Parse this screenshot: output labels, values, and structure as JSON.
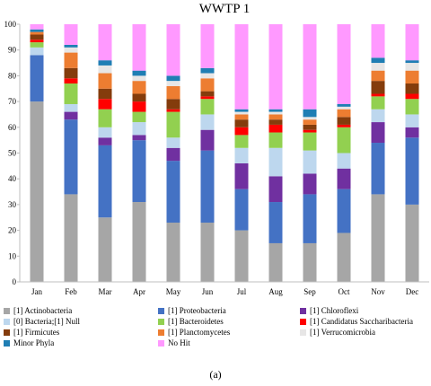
{
  "caption": "(a)",
  "chart_data": {
    "type": "bar",
    "stacked": true,
    "title": "WWTP 1",
    "xlabel": "",
    "ylabel": "",
    "ylim": [
      0,
      100
    ],
    "yticks": [
      0,
      10,
      20,
      30,
      40,
      50,
      60,
      70,
      80,
      90,
      100
    ],
    "grid": false,
    "legend_position": "bottom",
    "categories": [
      "Jan",
      "Feb",
      "Mar",
      "Apr",
      "May",
      "Jun",
      "Jul",
      "Aug",
      "Sep",
      "Oct",
      "Nov",
      "Dec"
    ],
    "series": [
      {
        "name": "[1] Actinobacteria",
        "color": "#a6a6a6",
        "values": [
          70,
          34,
          25,
          31,
          23,
          23,
          20,
          15,
          15,
          19,
          34,
          30
        ]
      },
      {
        "name": "[1] Proteobacteria",
        "color": "#4472c4",
        "values": [
          18,
          29,
          28,
          24,
          24,
          28,
          16,
          16,
          19,
          17,
          20,
          26
        ]
      },
      {
        "name": "[1] Chloroflexi",
        "color": "#7030a0",
        "values": [
          0,
          3,
          3,
          2,
          5,
          8,
          10,
          10,
          8,
          8,
          8,
          4
        ]
      },
      {
        "name": "[0] Bacteria;[1] Null",
        "color": "#bdd7ee",
        "values": [
          3,
          3,
          4,
          5,
          4,
          6,
          6,
          11,
          9,
          6,
          5,
          5
        ]
      },
      {
        "name": "[1] Bacteroidetes",
        "color": "#92d050",
        "values": [
          2,
          8,
          7,
          4,
          10,
          6,
          5,
          6,
          7,
          10,
          5,
          6
        ]
      },
      {
        "name": "[1] Candidatus Saccharibacteria",
        "color": "#ff0000",
        "values": [
          1,
          2,
          4,
          4,
          1,
          1,
          3,
          3,
          1,
          1,
          1,
          2
        ]
      },
      {
        "name": "[1] Firmicutes",
        "color": "#843c0c",
        "values": [
          2,
          4,
          4,
          3,
          4,
          2,
          3,
          2,
          2,
          3,
          5,
          4
        ]
      },
      {
        "name": "[1] Planctomycetes",
        "color": "#ed7d31",
        "values": [
          1,
          6,
          6,
          5,
          5,
          5,
          2,
          2,
          2,
          3,
          4,
          5
        ]
      },
      {
        "name": "[1] Verrucomicrobia",
        "color": "#e7e6e6",
        "values": [
          0,
          2,
          3,
          2,
          2,
          2,
          1,
          1,
          1,
          1,
          3,
          3
        ]
      },
      {
        "name": "Minor Phyla",
        "color": "#1f7eb4",
        "values": [
          1,
          1,
          2,
          2,
          2,
          2,
          1,
          1,
          3,
          1,
          2,
          1
        ]
      },
      {
        "name": "No Hit",
        "color": "#ff99ff",
        "values": [
          2,
          8,
          14,
          18,
          20,
          17,
          33,
          33,
          33,
          31,
          13,
          14
        ]
      }
    ]
  }
}
